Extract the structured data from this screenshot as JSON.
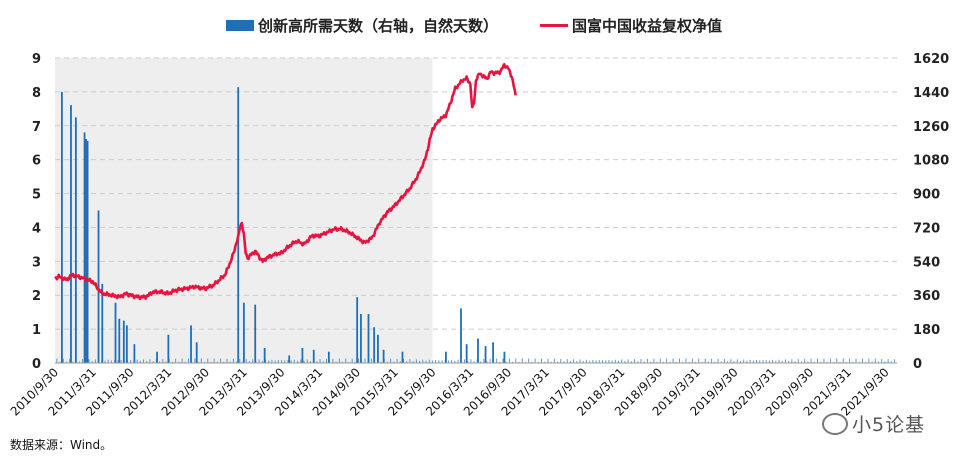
{
  "legend": {
    "bars_label": "创新高所需天数（右轴，自然天数）",
    "line_label": "国富中国收益复权净值"
  },
  "source": "数据来源：Wind。",
  "watermark": "小5论基",
  "colors": {
    "bars": "#1f6fb8",
    "line": "#e8143f",
    "shade": "#eeeeee",
    "grid": "#cccccc"
  },
  "chart_data": {
    "type": "bar+line",
    "left_axis": {
      "min": 0,
      "max": 9,
      "ticks": [
        0,
        1,
        2,
        3,
        4,
        5,
        6,
        7,
        8,
        9
      ]
    },
    "right_axis": {
      "min": 0,
      "max": 1620,
      "ticks": [
        0,
        180,
        360,
        540,
        720,
        900,
        1080,
        1260,
        1440,
        1620
      ]
    },
    "x_categories": [
      "2010/9/30",
      "2011/3/31",
      "2011/9/30",
      "2012/3/31",
      "2012/9/30",
      "2013/3/31",
      "2013/9/30",
      "2014/3/31",
      "2014/9/30",
      "2015/3/31",
      "2015/9/30",
      "2016/3/31",
      "2016/9/30",
      "2017/3/31",
      "2017/9/30",
      "2018/3/31",
      "2018/9/30",
      "2019/3/31",
      "2019/9/30",
      "2020/3/31",
      "2020/9/30",
      "2021/3/31",
      "2021/9/30"
    ],
    "shaded_region": {
      "from": "2010/9/30",
      "to": "2015/9/30"
    },
    "grid": "horizontal dashed",
    "series": [
      {
        "name": "国富中国收益复权净值",
        "kind": "line",
        "axis": "left",
        "t": [
          0,
          0.1,
          0.2,
          0.3,
          0.45,
          0.6,
          0.75,
          0.85,
          1.0,
          1.1,
          1.25,
          1.5,
          1.7,
          1.9,
          2.0,
          2.2,
          2.4,
          2.6,
          2.8,
          3.0,
          3.2,
          3.5,
          3.7,
          3.9,
          4.0,
          4.2,
          4.4,
          4.5,
          4.6,
          4.7,
          4.75,
          4.8,
          4.85,
          4.9,
          4.95,
          5.0,
          5.05,
          5.1,
          5.3,
          5.5,
          5.6,
          5.8,
          6.0,
          6.2,
          6.4,
          6.6,
          6.8,
          7.0,
          7.2,
          7.4,
          7.6,
          7.8,
          8.0,
          8.2,
          8.4,
          8.6,
          8.8,
          9.0,
          9.2,
          9.4,
          9.6,
          9.8,
          10.0,
          10.2,
          10.35,
          10.45,
          10.6,
          10.8,
          10.9,
          11.0,
          11.05,
          11.1,
          11.15,
          11.25,
          11.35,
          11.45,
          11.55,
          11.65,
          11.8,
          11.9,
          12.0,
          12.1,
          12.2
        ],
        "values": [
          2.5,
          2.55,
          2.5,
          2.45,
          2.6,
          2.55,
          2.5,
          2.45,
          2.4,
          2.25,
          2.05,
          2.0,
          1.95,
          2.05,
          2.0,
          1.95,
          1.95,
          2.1,
          2.1,
          2.05,
          2.15,
          2.2,
          2.25,
          2.2,
          2.2,
          2.3,
          2.5,
          2.6,
          2.85,
          3.15,
          3.3,
          3.55,
          3.7,
          4.0,
          4.15,
          3.8,
          3.25,
          3.1,
          3.3,
          3.0,
          3.1,
          3.2,
          3.25,
          3.45,
          3.6,
          3.5,
          3.75,
          3.75,
          3.85,
          3.95,
          3.95,
          3.85,
          3.7,
          3.55,
          3.7,
          4.15,
          4.45,
          4.65,
          4.9,
          5.15,
          5.5,
          6.0,
          6.9,
          7.2,
          7.3,
          7.6,
          8.1,
          8.35,
          8.4,
          8.25,
          7.5,
          7.7,
          8.35,
          8.55,
          8.45,
          8.4,
          8.6,
          8.55,
          8.6,
          8.8,
          8.7,
          8.45,
          7.9
        ]
      },
      {
        "name": "创新高所需天数（右轴，自然天数）",
        "kind": "bar",
        "axis": "right",
        "spikes": [
          {
            "t": 0.18,
            "value": 1440
          },
          {
            "t": 0.42,
            "value": 1370
          },
          {
            "t": 0.55,
            "value": 1305
          },
          {
            "t": 0.78,
            "value": 1225
          },
          {
            "t": 0.82,
            "value": 1190
          },
          {
            "t": 0.86,
            "value": 1180
          },
          {
            "t": 1.15,
            "value": 810
          },
          {
            "t": 1.25,
            "value": 420
          },
          {
            "t": 1.6,
            "value": 320
          },
          {
            "t": 1.7,
            "value": 235
          },
          {
            "t": 1.82,
            "value": 225
          },
          {
            "t": 1.9,
            "value": 200
          },
          {
            "t": 2.1,
            "value": 100
          },
          {
            "t": 2.7,
            "value": 60
          },
          {
            "t": 3.0,
            "value": 150
          },
          {
            "t": 3.6,
            "value": 200
          },
          {
            "t": 3.75,
            "value": 110
          },
          {
            "t": 4.85,
            "value": 1465
          },
          {
            "t": 5.0,
            "value": 320
          },
          {
            "t": 5.3,
            "value": 310
          },
          {
            "t": 5.55,
            "value": 80
          },
          {
            "t": 6.2,
            "value": 40
          },
          {
            "t": 6.55,
            "value": 80
          },
          {
            "t": 6.85,
            "value": 70
          },
          {
            "t": 7.25,
            "value": 60
          },
          {
            "t": 8.0,
            "value": 350
          },
          {
            "t": 8.1,
            "value": 260
          },
          {
            "t": 8.3,
            "value": 260
          },
          {
            "t": 8.45,
            "value": 190
          },
          {
            "t": 8.55,
            "value": 150
          },
          {
            "t": 8.7,
            "value": 70
          },
          {
            "t": 9.2,
            "value": 60
          },
          {
            "t": 10.35,
            "value": 60
          },
          {
            "t": 10.75,
            "value": 290
          },
          {
            "t": 10.9,
            "value": 100
          },
          {
            "t": 11.2,
            "value": 130
          },
          {
            "t": 11.4,
            "value": 90
          },
          {
            "t": 11.6,
            "value": 110
          },
          {
            "t": 11.9,
            "value": 60
          }
        ]
      }
    ]
  }
}
